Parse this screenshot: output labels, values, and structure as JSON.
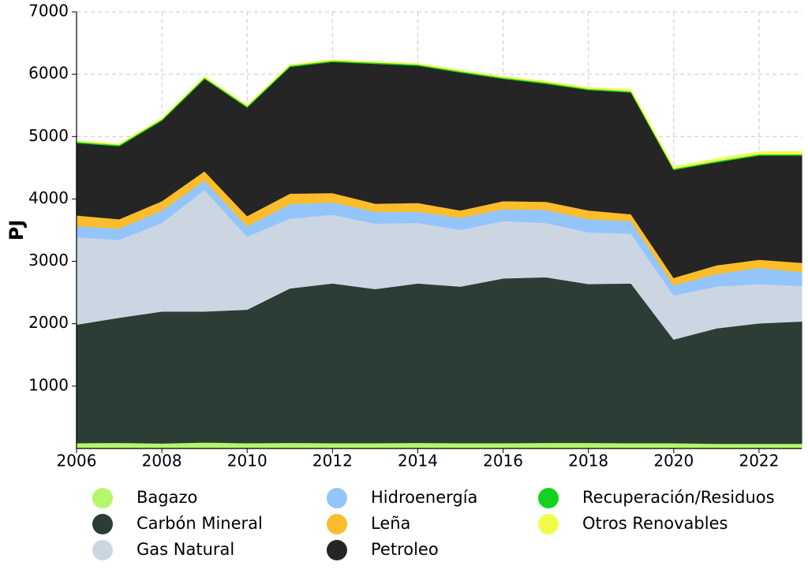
{
  "chart_data": {
    "type": "area",
    "stacked": true,
    "ylabel": "PJ",
    "x": [
      2006,
      2007,
      2008,
      2009,
      2010,
      2011,
      2012,
      2013,
      2014,
      2015,
      2016,
      2017,
      2018,
      2019,
      2020,
      2021,
      2022,
      2023
    ],
    "xlim": [
      2006,
      2023
    ],
    "xticks": [
      2006,
      2008,
      2010,
      2012,
      2014,
      2016,
      2018,
      2020,
      2022
    ],
    "ylim": [
      0,
      7000
    ],
    "yticks": [
      1000,
      2000,
      3000,
      4000,
      5000,
      6000,
      7000
    ],
    "grid": true,
    "legend": "bottom",
    "series": [
      {
        "name": "Bagazo",
        "color": "#b5f66c",
        "values": [
          90,
          95,
          85,
          100,
          90,
          95,
          90,
          90,
          95,
          90,
          90,
          95,
          95,
          90,
          90,
          80,
          80,
          80
        ]
      },
      {
        "name": "Carbón Mineral",
        "color": "#2b3d35",
        "values": [
          1900,
          2005,
          2115,
          2100,
          2140,
          2475,
          2560,
          2470,
          2555,
          2510,
          2640,
          2655,
          2545,
          2560,
          1660,
          1850,
          1930,
          1960
        ]
      },
      {
        "name": "Gas Natural",
        "color": "#ccd6e2",
        "values": [
          1400,
          1250,
          1420,
          1950,
          1170,
          1120,
          1100,
          1050,
          970,
          910,
          920,
          870,
          830,
          800,
          710,
          670,
          630,
          570
        ]
      },
      {
        "name": "Hidroenergía",
        "color": "#93c5fb",
        "values": [
          180,
          180,
          200,
          150,
          170,
          230,
          200,
          190,
          180,
          190,
          190,
          210,
          210,
          200,
          160,
          200,
          260,
          220
        ]
      },
      {
        "name": "Leña",
        "color": "#fbbd2b",
        "values": [
          170,
          150,
          150,
          150,
          160,
          170,
          150,
          130,
          140,
          120,
          130,
          130,
          140,
          110,
          120,
          140,
          130,
          150
        ]
      },
      {
        "name": "Petroleo",
        "color": "#252525",
        "values": [
          1160,
          1170,
          1290,
          1480,
          1740,
          2030,
          2100,
          2240,
          2200,
          2210,
          1960,
          1890,
          1930,
          1950,
          1730,
          1650,
          1670,
          1720
        ]
      },
      {
        "name": "Recuperación/Residuos",
        "color": "#14d21e",
        "values": [
          20,
          20,
          20,
          20,
          20,
          20,
          20,
          20,
          20,
          20,
          20,
          20,
          20,
          20,
          20,
          20,
          20,
          20
        ]
      },
      {
        "name": "Otros Renovables",
        "color": "#f2fb4a",
        "values": [
          10,
          10,
          10,
          10,
          10,
          10,
          10,
          10,
          10,
          10,
          10,
          15,
          15,
          20,
          25,
          30,
          35,
          40
        ]
      }
    ]
  }
}
